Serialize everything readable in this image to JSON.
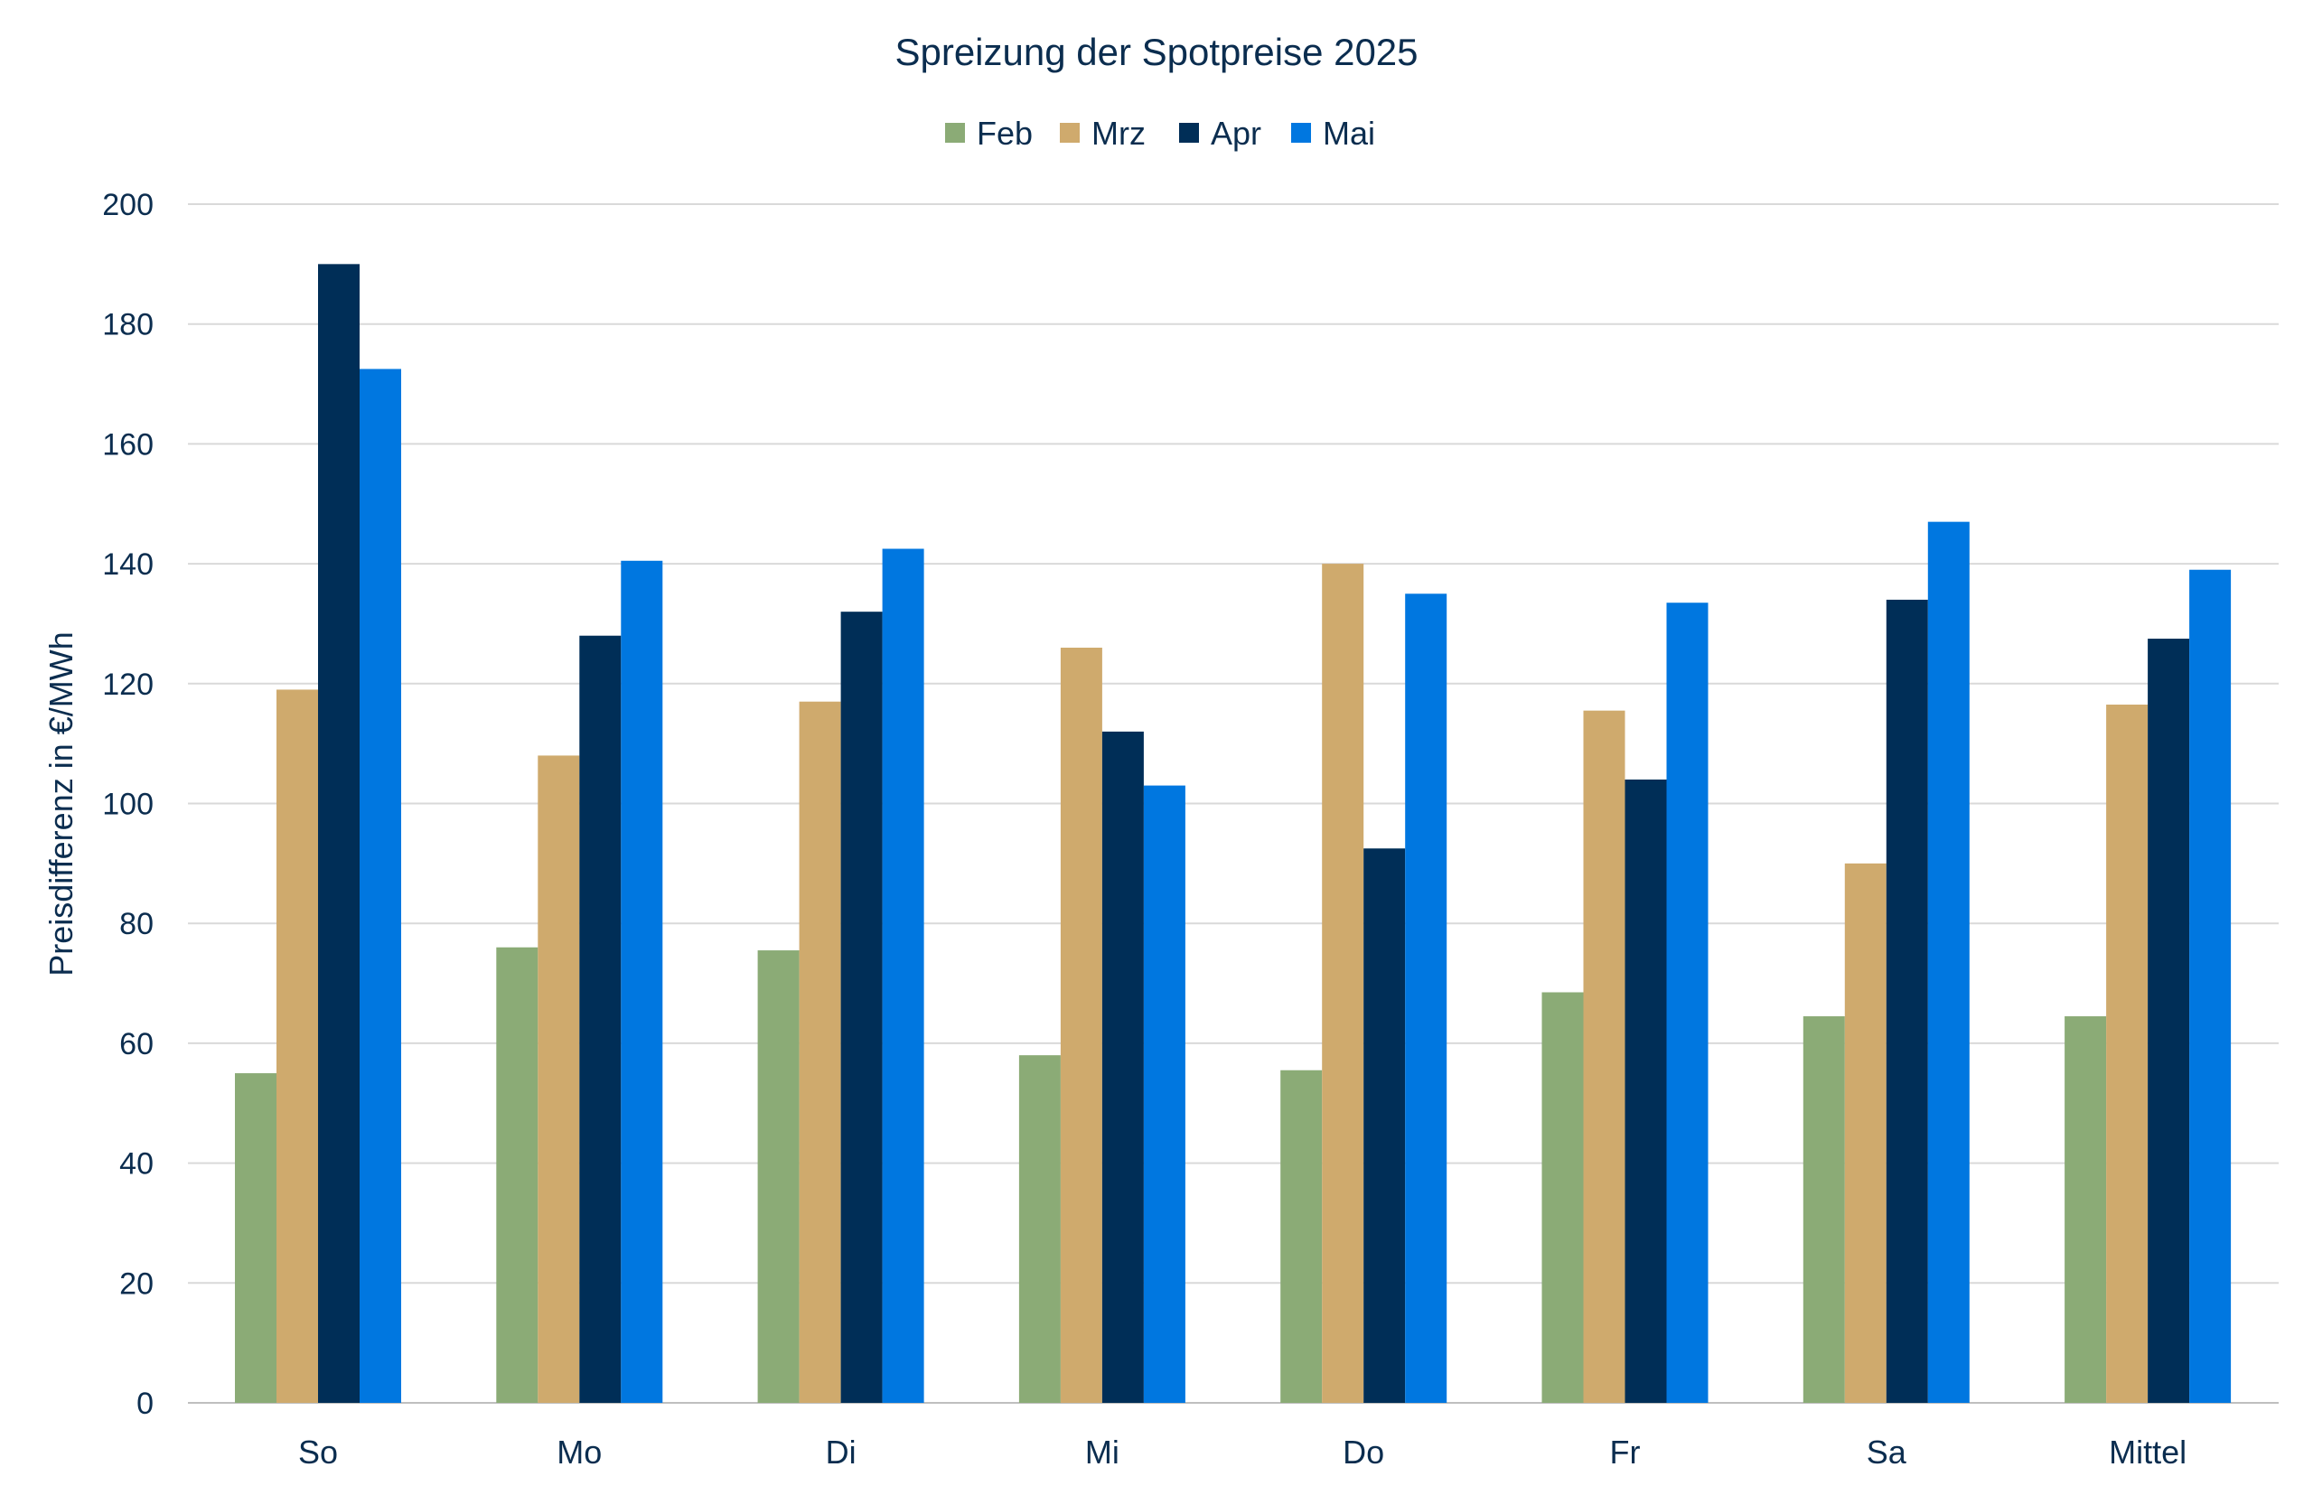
{
  "chart_data": {
    "type": "bar",
    "title": "Spreizung der Spotpreise 2025",
    "xlabel": "",
    "ylabel": "Preisdifferenz in €/MWh",
    "ylim": [
      0,
      200
    ],
    "yticks": [
      0,
      20,
      40,
      60,
      80,
      100,
      120,
      140,
      160,
      180,
      200
    ],
    "grid": true,
    "legend_position": "top-center",
    "categories": [
      "So",
      "Mo",
      "Di",
      "Mi",
      "Do",
      "Fr",
      "Sa",
      "Mittel"
    ],
    "series": [
      {
        "name": "Feb",
        "color": "#8bab76",
        "values": [
          55,
          76,
          75.5,
          58,
          55.5,
          68.5,
          64.5,
          64.5
        ]
      },
      {
        "name": "Mrz",
        "color": "#cfaa6d",
        "values": [
          119,
          108,
          117,
          126,
          140,
          115.5,
          90,
          116.5
        ]
      },
      {
        "name": "Apr",
        "color": "#002e57",
        "values": [
          190,
          128,
          132,
          112,
          92.5,
          104,
          134,
          127.5
        ]
      },
      {
        "name": "Mai",
        "color": "#0077e0",
        "values": [
          172.5,
          140.5,
          142.5,
          103,
          135,
          133.5,
          147,
          139
        ]
      }
    ]
  }
}
